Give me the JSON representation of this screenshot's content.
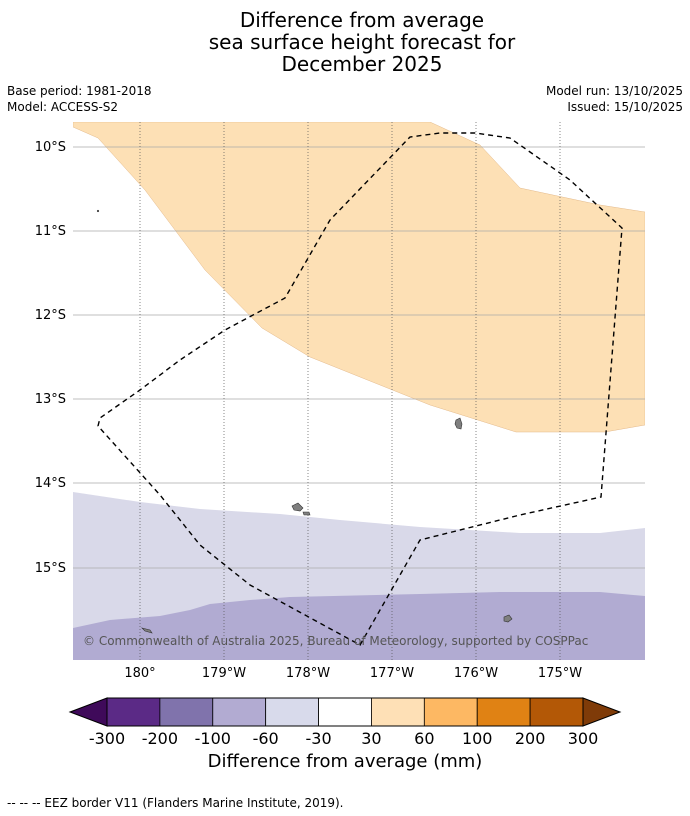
{
  "title": {
    "line1": "Difference from average",
    "line2": "sea surface height forecast for",
    "line3": "December 2025"
  },
  "meta_left": {
    "base_period": "Base period: 1981-2018",
    "model": "Model: ACCESS-S2"
  },
  "meta_right": {
    "model_run": "Model run: 13/10/2025",
    "issued": "Issued: 15/10/2025"
  },
  "map": {
    "lat_labels": [
      "10°S",
      "11°S",
      "12°S",
      "13°S",
      "14°S",
      "15°S"
    ],
    "lon_labels": [
      "180°",
      "179°W",
      "178°W",
      "177°W",
      "176°W",
      "175°W"
    ],
    "copyright": "© Commonwealth of Australia 2025, Bureau of Meteorology, supported by COSPPac",
    "colors": {
      "warm_light": "#fde0b5",
      "cool_light": "#d9d9e9",
      "cool_mid": "#b1abd2",
      "land": "#7f7f7f",
      "grid": "#aaaaaa"
    }
  },
  "colorbar": {
    "ticks": [
      "-300",
      "-200",
      "-100",
      "-60",
      "-30",
      "30",
      "60",
      "100",
      "200",
      "300"
    ],
    "colors": [
      "#3f0a5a",
      "#5b2a86",
      "#8073ac",
      "#b2abd2",
      "#d8daeb",
      "#ffffff",
      "#fee0b6",
      "#fdb863",
      "#e08214",
      "#b35806",
      "#7f3b08"
    ],
    "label": "Difference from average (mm)"
  },
  "footer": {
    "legend_text": "--  --  -- EEZ border V11 (Flanders Marine Institute, 2019)."
  }
}
